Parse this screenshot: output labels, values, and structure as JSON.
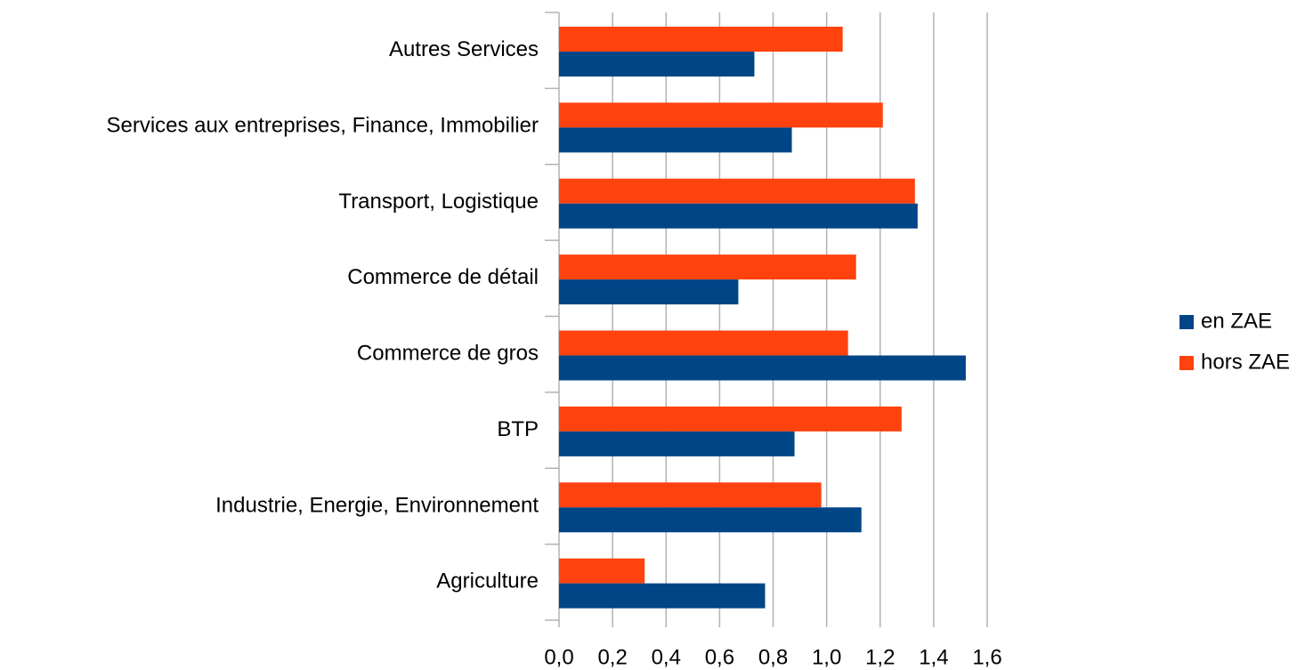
{
  "chart_data": {
    "type": "hbar",
    "categories": [
      "Autres Services",
      "Services aux entreprises, Finance, Immobilier",
      "Transport, Logistique",
      "Commerce de détail",
      "Commerce de gros",
      "BTP",
      "Industrie, Energie, Environnement",
      "Agriculture"
    ],
    "series": [
      {
        "name": "en ZAE",
        "color": "#004586",
        "values": [
          0.73,
          0.87,
          1.34,
          0.67,
          1.52,
          0.88,
          1.13,
          0.77
        ]
      },
      {
        "name": "hors ZAE",
        "color": "#ff420e",
        "values": [
          1.06,
          1.21,
          1.33,
          1.11,
          1.08,
          1.28,
          0.98,
          0.32
        ]
      }
    ],
    "xlim": [
      0,
      1.6
    ],
    "xticks": [
      {
        "value": 0,
        "label": "0,0"
      },
      {
        "value": 0.2,
        "label": "0,2"
      },
      {
        "value": 0.4,
        "label": "0,4"
      },
      {
        "value": 0.6,
        "label": "0,6"
      },
      {
        "value": 0.8,
        "label": "0,8"
      },
      {
        "value": 1.0,
        "label": "1,0"
      },
      {
        "value": 1.2,
        "label": "1,2"
      },
      {
        "value": 1.4,
        "label": "1,4"
      },
      {
        "value": 1.6,
        "label": "1,6"
      }
    ],
    "grid": true,
    "legend": "right"
  }
}
